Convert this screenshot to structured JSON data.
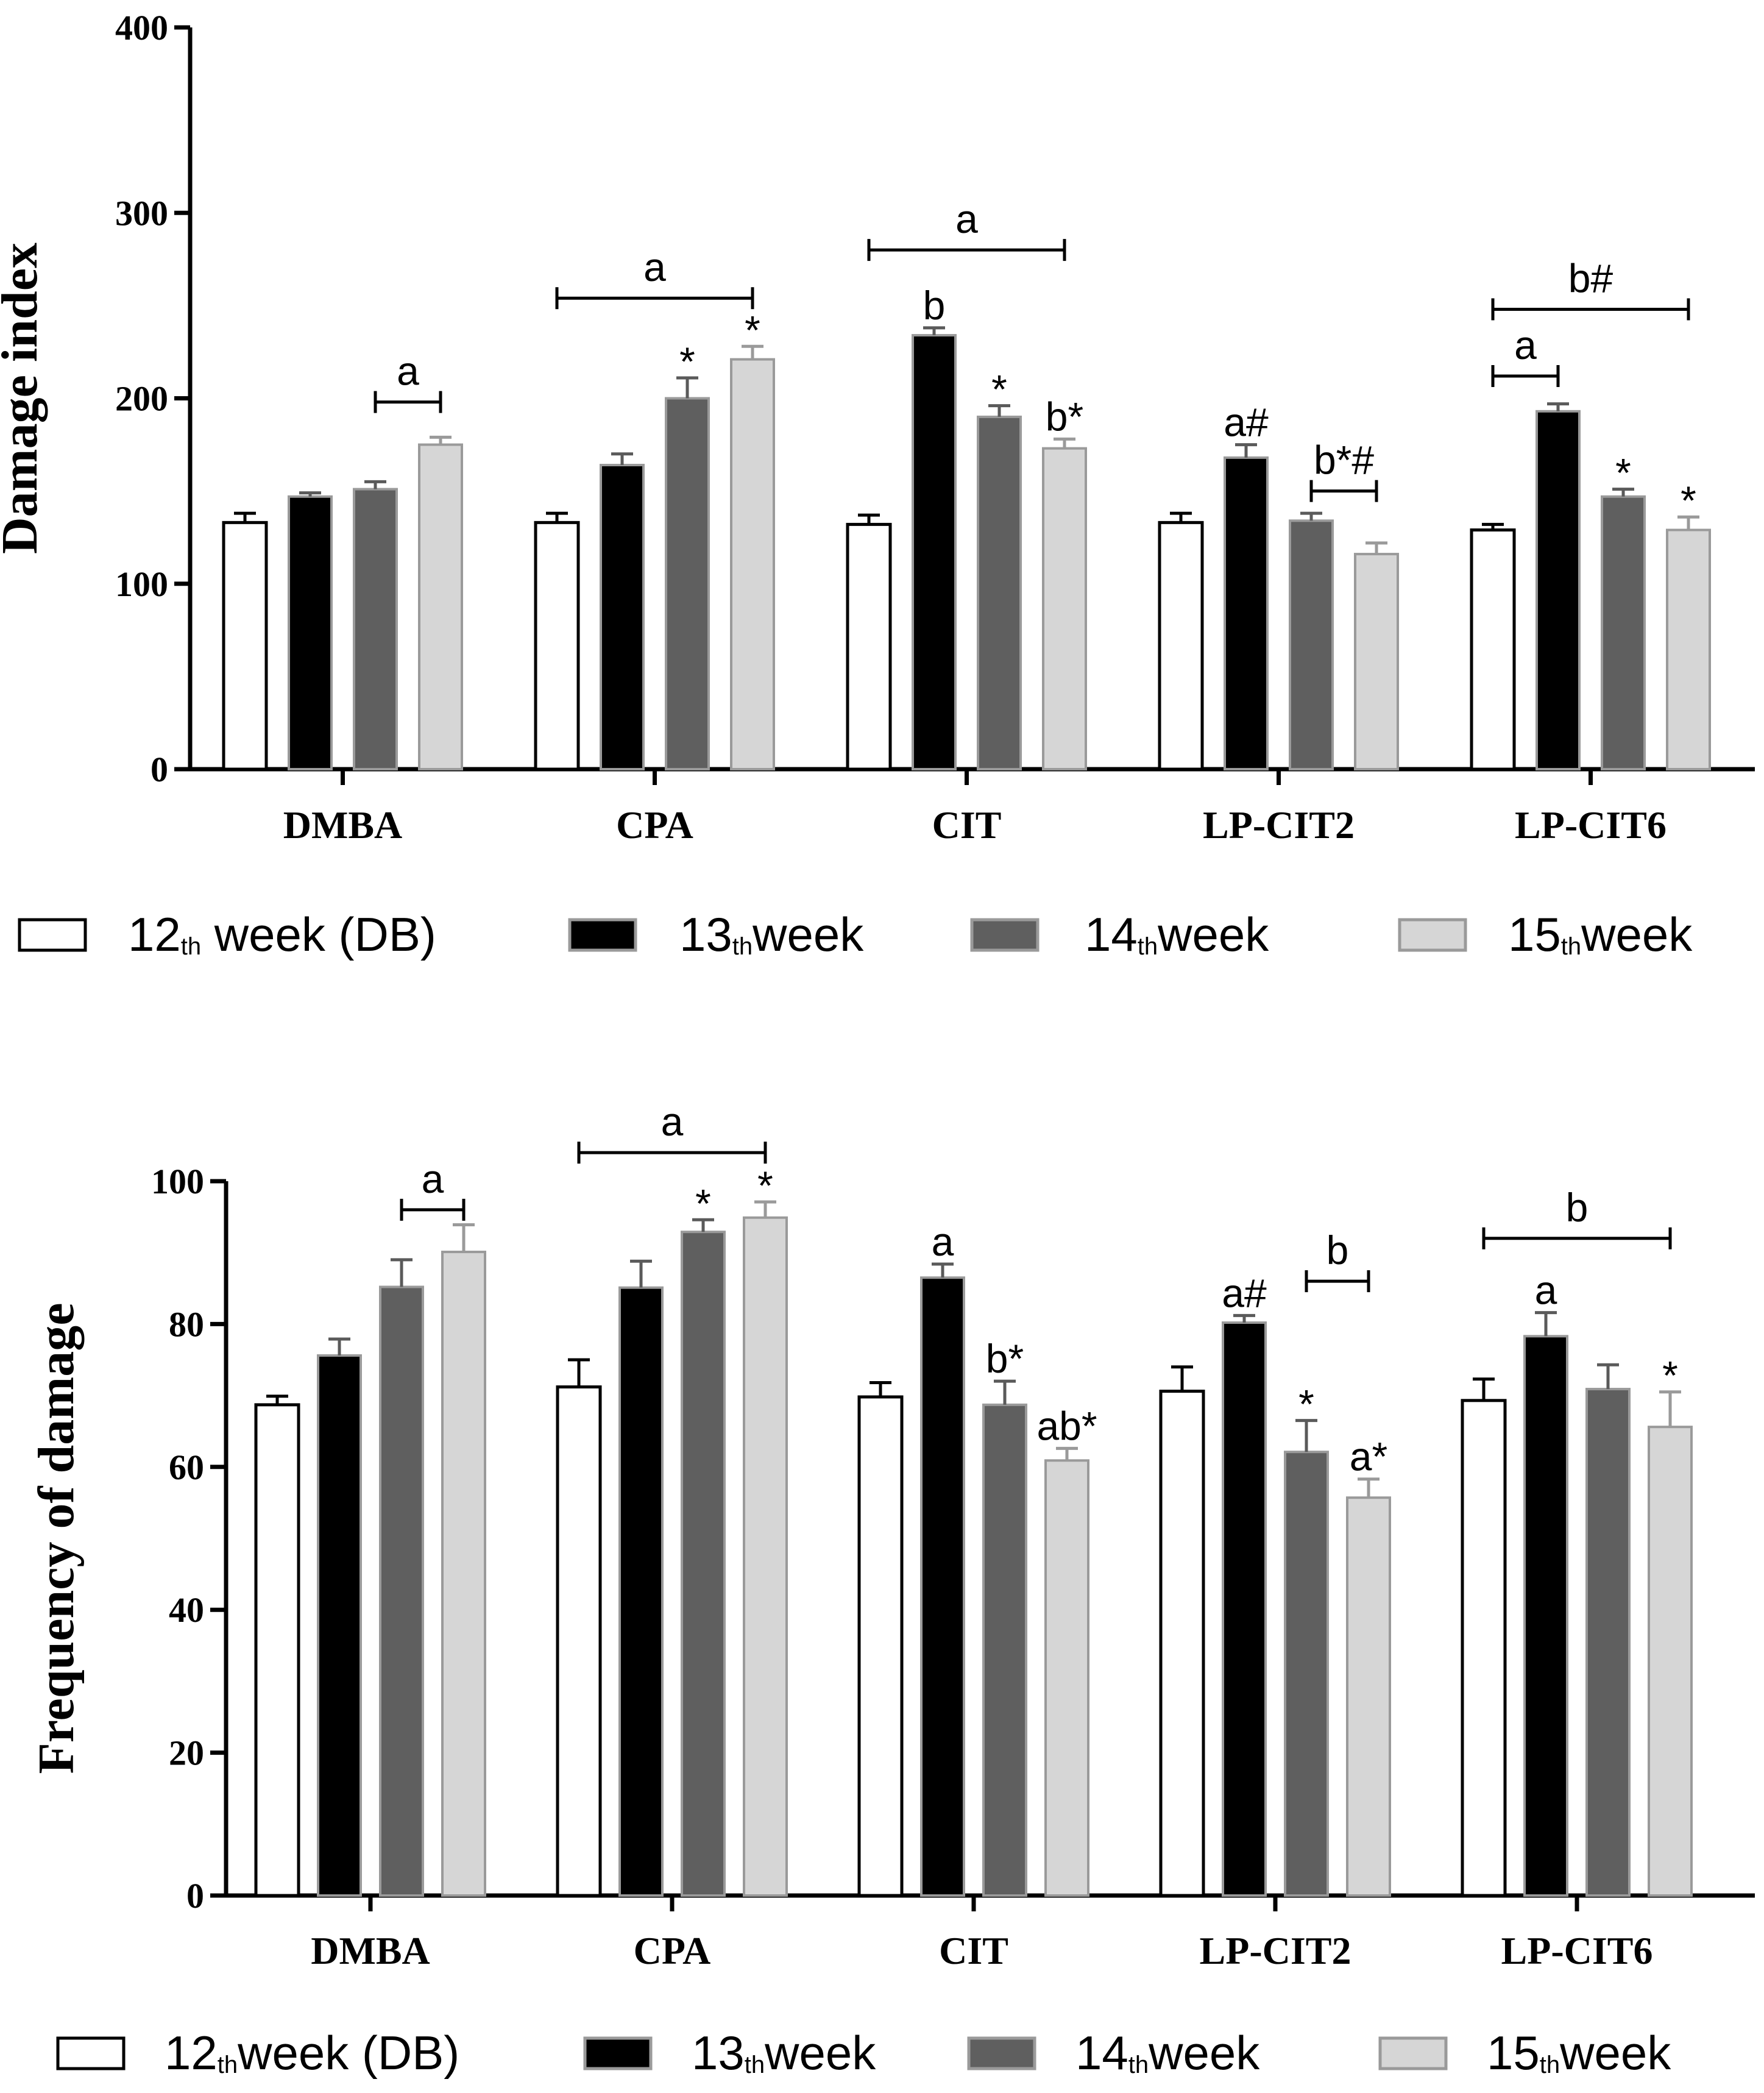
{
  "chart_data": [
    {
      "type": "bar",
      "ylabel": "Damage index",
      "xlabel": "",
      "ylim": [
        0,
        400
      ],
      "yticks": [
        0,
        100,
        200,
        300,
        400
      ],
      "categories": [
        "DMBA",
        "CPA",
        "CIT",
        "LP-CIT2",
        "LP-CIT6"
      ],
      "series": [
        {
          "name": "12th week (DB)",
          "legend_main": "12",
          "legend_sub": "th",
          "legend_rest": " week (DB)",
          "color": "#ffffff",
          "values": [
            133,
            133,
            132,
            133,
            129
          ],
          "errors": [
            5,
            5,
            5,
            5,
            3
          ]
        },
        {
          "name": "13th week",
          "legend_main": "13",
          "legend_sub": "th",
          "legend_rest": "week",
          "color": "#000000",
          "values": [
            147,
            164,
            234,
            168,
            193
          ],
          "errors": [
            2,
            6,
            4,
            7,
            4
          ]
        },
        {
          "name": "14th week",
          "legend_main": "14",
          "legend_sub": "th",
          "legend_rest": "week",
          "color": "#5f5f5f",
          "values": [
            151,
            200,
            190,
            134,
            147
          ],
          "errors": [
            4,
            11,
            6,
            4,
            4
          ]
        },
        {
          "name": "15th week",
          "legend_main": "15",
          "legend_sub": "th",
          "legend_rest": "week",
          "color": "#d6d6d6",
          "values": [
            175,
            221,
            173,
            116,
            129
          ],
          "errors": [
            4,
            7,
            5,
            6,
            7
          ]
        }
      ],
      "bar_labels": [
        {
          "category": 1,
          "series": 2,
          "text": "*"
        },
        {
          "category": 1,
          "series": 3,
          "text": "*"
        },
        {
          "category": 2,
          "series": 1,
          "text": "b"
        },
        {
          "category": 2,
          "series": 2,
          "text": "*"
        },
        {
          "category": 2,
          "series": 3,
          "text": "b*"
        },
        {
          "category": 3,
          "series": 1,
          "text": "a#"
        },
        {
          "category": 4,
          "series": 2,
          "text": "*"
        },
        {
          "category": 4,
          "series": 3,
          "text": "*"
        }
      ],
      "brackets": [
        {
          "category": 0,
          "from_series": 2,
          "to_series": 3,
          "value": 198,
          "text": "a"
        },
        {
          "category": 1,
          "from_series": 0,
          "to_series": 3,
          "value": 254,
          "text": "a"
        },
        {
          "category": 2,
          "from_series": 0,
          "to_series": 3,
          "value": 280,
          "text": "a"
        },
        {
          "category": 3,
          "from_series": 2,
          "to_series": 3,
          "value": 150,
          "text": "b*#"
        },
        {
          "category": 4,
          "from_series": 0,
          "to_series": 1,
          "value": 212,
          "text": "a"
        },
        {
          "category": 4,
          "from_series": 0,
          "to_series": 3,
          "value": 248,
          "text": "b#"
        }
      ]
    },
    {
      "type": "bar",
      "ylabel": "Frequency of damage",
      "xlabel": "",
      "ylim": [
        0,
        100
      ],
      "yticks": [
        0,
        20,
        40,
        60,
        80,
        100
      ],
      "categories": [
        "DMBA",
        "CPA",
        "CIT",
        "LP-CIT2",
        "LP-CIT6"
      ],
      "series": [
        {
          "name": "12th week (DB)",
          "legend_main": "12",
          "legend_sub": "th",
          "legend_rest": "week (DB)",
          "color": "#ffffff",
          "values": [
            68.7,
            71.2,
            69.8,
            70.6,
            69.3
          ],
          "errors": [
            1.2,
            3.8,
            2.0,
            3.4,
            3.0
          ]
        },
        {
          "name": "13th week",
          "legend_main": "13",
          "legend_sub": "th",
          "legend_rest": "week",
          "color": "#000000",
          "values": [
            75.6,
            85.1,
            86.5,
            80.2,
            78.3
          ],
          "errors": [
            2.3,
            3.7,
            1.9,
            1.0,
            3.3
          ]
        },
        {
          "name": "14th week",
          "legend_main": "14",
          "legend_sub": "th",
          "legend_rest": "week",
          "color": "#5f5f5f",
          "values": [
            85.2,
            92.9,
            68.7,
            62.1,
            70.9
          ],
          "errors": [
            3.8,
            1.7,
            3.3,
            4.4,
            3.4
          ]
        },
        {
          "name": "15th week",
          "legend_main": "15",
          "legend_sub": "th",
          "legend_rest": "week",
          "color": "#d6d6d6",
          "values": [
            90.1,
            94.9,
            60.9,
            55.7,
            65.6
          ],
          "errors": [
            3.8,
            2.2,
            1.7,
            2.6,
            4.9
          ]
        }
      ],
      "bar_labels": [
        {
          "category": 1,
          "series": 2,
          "text": "*"
        },
        {
          "category": 1,
          "series": 3,
          "text": "*"
        },
        {
          "category": 2,
          "series": 1,
          "text": "a"
        },
        {
          "category": 2,
          "series": 2,
          "text": "b*"
        },
        {
          "category": 2,
          "series": 3,
          "text": "ab*"
        },
        {
          "category": 3,
          "series": 1,
          "text": "a#"
        },
        {
          "category": 3,
          "series": 2,
          "text": "*"
        },
        {
          "category": 3,
          "series": 3,
          "text": "a*"
        },
        {
          "category": 4,
          "series": 1,
          "text": "a"
        },
        {
          "category": 4,
          "series": 3,
          "text": "*"
        }
      ],
      "brackets": [
        {
          "category": 0,
          "from_series": 2,
          "to_series": 3,
          "value": 96,
          "text": "a"
        },
        {
          "category": 1,
          "from_series": 0,
          "to_series": 3,
          "value": 104,
          "text": "a"
        },
        {
          "category": 3,
          "from_series": 2,
          "to_series": 3,
          "value": 86,
          "text": "b"
        },
        {
          "category": 4,
          "from_series": 0,
          "to_series": 3,
          "value": 92,
          "text": "b"
        }
      ]
    }
  ]
}
